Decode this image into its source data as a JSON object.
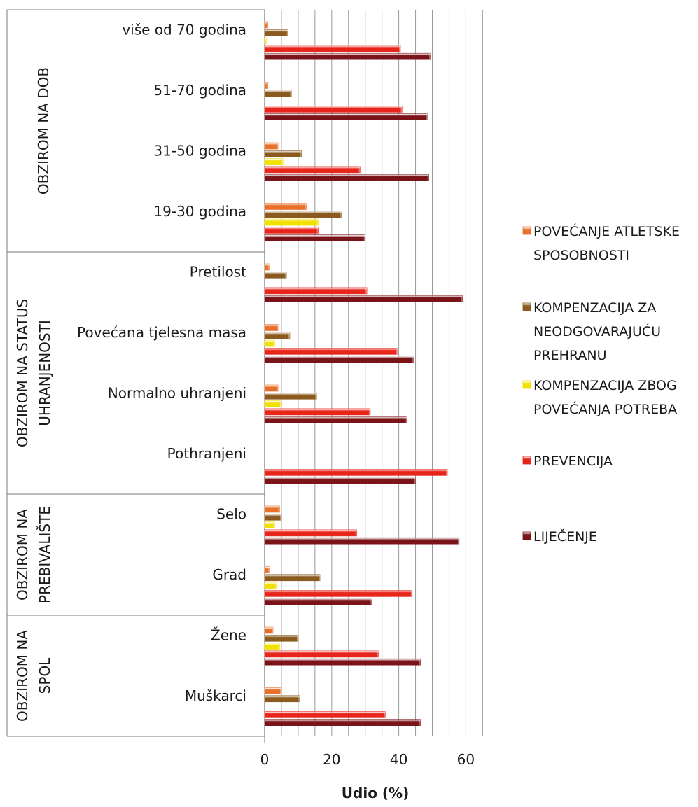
{
  "chart_data": {
    "type": "bar",
    "orientation": "horizontal",
    "xlabel": "Udio (%)",
    "xlim": [
      0,
      65
    ],
    "xticks": [
      0,
      20,
      40,
      60
    ],
    "grid": true,
    "legend_position": "right",
    "groups": [
      {
        "label": "OBZIROM NA DOB",
        "categories": [
          "više od 70 godina",
          "51-70 godina",
          "31-50 godina",
          "19-30 godina"
        ]
      },
      {
        "label": "OBZIROM NA STATUS UHRANJENOSTI",
        "categories": [
          "Pretilost",
          "Povećana tjelesna masa",
          "Normalno uhranjeni",
          "Pothranjeni"
        ]
      },
      {
        "label": "OBZIROM NA PREBIVALIŠTE",
        "categories": [
          "Selo",
          "Grad"
        ]
      },
      {
        "label": "OBZIROM NA SPOL",
        "categories": [
          "Žene",
          "Muškarci"
        ]
      }
    ],
    "categories": [
      "više od 70 godina",
      "51-70 godina",
      "31-50 godina",
      "19-30 godina",
      "Pretilost",
      "Povećana tjelesna masa",
      "Normalno uhranjeni",
      "Pothranjeni",
      "Selo",
      "Grad",
      "Žene",
      "Muškarci"
    ],
    "series": [
      {
        "name": "POVEĆANJE ATLETSKE SPOSOBNOSTI",
        "color": "#E8702A",
        "values": [
          1,
          1,
          4,
          12.5,
          1.5,
          4,
          4,
          0,
          4.5,
          1.5,
          2.5,
          5
        ]
      },
      {
        "name": "KOMPENZACIJA ZA NEODGOVARAJUĆU PREHRANU",
        "color": "#8A5A1E",
        "values": [
          7,
          8,
          11,
          23,
          6.5,
          7.5,
          15.5,
          0,
          5,
          16.5,
          10,
          10.5
        ]
      },
      {
        "name": "KOMPENZACIJA ZBOG POVEĆANJA POTREBA",
        "color": "#F2E000",
        "values": [
          0.5,
          0,
          5.5,
          16,
          0,
          3,
          5,
          0,
          3,
          3.5,
          4.5,
          0
        ]
      },
      {
        "name": "PREVENCIJA",
        "color": "#E8251A",
        "values": [
          40.5,
          41,
          28.5,
          16,
          30.5,
          39.5,
          31.5,
          54.5,
          27.5,
          44,
          34,
          36
        ]
      },
      {
        "name": "LIJEČENJE",
        "color": "#7A1418",
        "values": [
          49.5,
          48.5,
          49,
          30,
          59,
          44.5,
          42.5,
          45,
          58,
          32,
          46.5,
          46.5
        ]
      }
    ]
  }
}
